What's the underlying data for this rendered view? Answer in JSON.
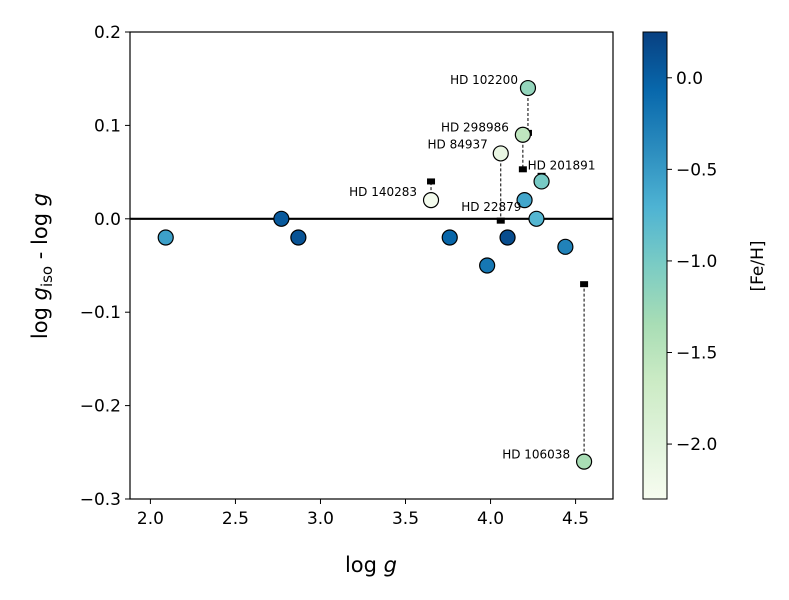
{
  "chart_data": {
    "type": "scatter",
    "xlabel_base": "log ",
    "xlabel_var": "g",
    "ylabel_parts": {
      "base": "log ",
      "var1": "g",
      "sub": "iso",
      "mid": " - log ",
      "var2": "g"
    },
    "xlim": [
      1.88,
      4.72
    ],
    "ylim": [
      -0.3,
      0.2
    ],
    "xticks": [
      2.0,
      2.5,
      3.0,
      3.5,
      4.0,
      4.5
    ],
    "xtick_labels": [
      "2.0",
      "2.5",
      "3.0",
      "3.5",
      "4.0",
      "4.5"
    ],
    "yticks": [
      0.2,
      0.1,
      0.0,
      -0.1,
      -0.2,
      -0.3
    ],
    "ytick_labels": [
      "0.2",
      "0.1",
      "0.0",
      "−0.1",
      "−0.2",
      "−0.3"
    ],
    "reference_line_y": 0.0,
    "colorbar": {
      "label": "[Fe/H]",
      "range": [
        -2.3,
        0.25
      ],
      "ticks": [
        0.0,
        -0.5,
        -1.0,
        -1.5,
        -2.0
      ],
      "tick_labels": [
        "0.0",
        "−0.5",
        "−1.0",
        "−1.5",
        "−2.0"
      ],
      "colors": [
        "#f7fcf0",
        "#e0f3db",
        "#ccebc5",
        "#a8ddb5",
        "#7bccc4",
        "#4eb3d3",
        "#2b8cbe",
        "#0868ac",
        "#084081"
      ]
    },
    "points": [
      {
        "x": 2.09,
        "y": -0.02,
        "feh": -0.55
      },
      {
        "x": 2.77,
        "y": 0.0,
        "feh": 0.05
      },
      {
        "x": 2.87,
        "y": -0.02,
        "feh": 0.1
      },
      {
        "x": 3.76,
        "y": -0.02,
        "feh": -0.05
      },
      {
        "x": 3.98,
        "y": -0.05,
        "feh": -0.2
      },
      {
        "x": 4.1,
        "y": -0.02,
        "feh": 0.15
      },
      {
        "x": 4.2,
        "y": 0.02,
        "feh": -0.6
      },
      {
        "x": 4.44,
        "y": -0.03,
        "feh": -0.3
      },
      {
        "x": 3.65,
        "y": 0.02,
        "feh": -2.25,
        "label": "HD 140283",
        "iso_y": 0.04
      },
      {
        "x": 4.06,
        "y": 0.07,
        "feh": -2.1,
        "label": "HD 84937",
        "iso_y": -0.002
      },
      {
        "x": 4.22,
        "y": 0.14,
        "feh": -1.2,
        "label": "HD 102200",
        "iso_y": 0.092
      },
      {
        "x": 4.19,
        "y": 0.09,
        "feh": -1.55,
        "label": "HD 298986",
        "iso_y": 0.053
      },
      {
        "x": 4.3,
        "y": 0.04,
        "feh": -1.0,
        "label": "HD 201891",
        "iso_y": 0.046
      },
      {
        "x": 4.27,
        "y": 0.0,
        "feh": -0.75,
        "label": "HD 22879"
      },
      {
        "x": 4.55,
        "y": -0.26,
        "feh": -1.35,
        "label": "HD 106038",
        "iso_y": -0.07
      }
    ]
  }
}
